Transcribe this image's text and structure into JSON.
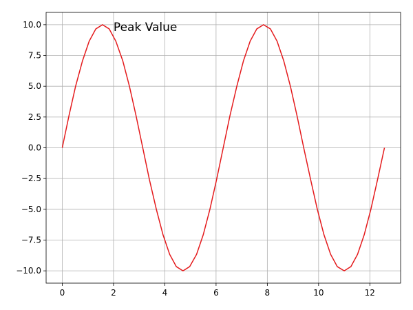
{
  "chart_data": {
    "type": "line",
    "x": [
      0,
      0.26,
      0.52,
      0.79,
      1.05,
      1.31,
      1.57,
      1.83,
      2.09,
      2.36,
      2.62,
      2.88,
      3.14,
      3.4,
      3.67,
      3.93,
      4.19,
      4.45,
      4.71,
      4.97,
      5.24,
      5.5,
      5.76,
      6.02,
      6.28,
      6.54,
      6.81,
      7.07,
      7.33,
      7.59,
      7.85,
      8.12,
      8.38,
      8.64,
      8.9,
      9.16,
      9.42,
      9.69,
      9.95,
      10.21,
      10.47,
      10.73,
      11.0,
      11.26,
      11.52,
      11.78,
      12.04,
      12.3,
      12.57
    ],
    "series": [
      {
        "color": "#e41a1c",
        "values": [
          0,
          2.59,
          5,
          7.07,
          8.66,
          9.66,
          10,
          9.66,
          8.66,
          7.07,
          5,
          2.59,
          0,
          -2.59,
          -5,
          -7.07,
          -8.66,
          -9.66,
          -10,
          -9.66,
          -8.66,
          -7.07,
          -5,
          -2.59,
          0,
          2.59,
          5,
          7.07,
          8.66,
          9.66,
          10,
          9.66,
          8.66,
          7.07,
          5,
          2.59,
          0,
          -2.59,
          -5,
          -7.07,
          -8.66,
          -9.66,
          -10,
          -9.66,
          -8.66,
          -7.07,
          -5,
          -2.59,
          0
        ]
      }
    ],
    "xlim": [
      -0.63,
      13.2
    ],
    "ylim": [
      -11,
      11
    ],
    "xticks": [
      0,
      2,
      4,
      6,
      8,
      10,
      12
    ],
    "yticks": [
      {
        "value": -10,
        "label": "−10.0"
      },
      {
        "value": -7.5,
        "label": "−7.5"
      },
      {
        "value": -5,
        "label": "−5.0"
      },
      {
        "value": -2.5,
        "label": "−2.5"
      },
      {
        "value": 0,
        "label": "0.0"
      },
      {
        "value": 2.5,
        "label": "2.5"
      },
      {
        "value": 5,
        "label": "5.0"
      },
      {
        "value": 7.5,
        "label": "7.5"
      },
      {
        "value": 10,
        "label": "10.0"
      }
    ],
    "grid": true,
    "annotations": [
      {
        "text": "Peak Value",
        "x": 2,
        "y": 10
      }
    ]
  }
}
